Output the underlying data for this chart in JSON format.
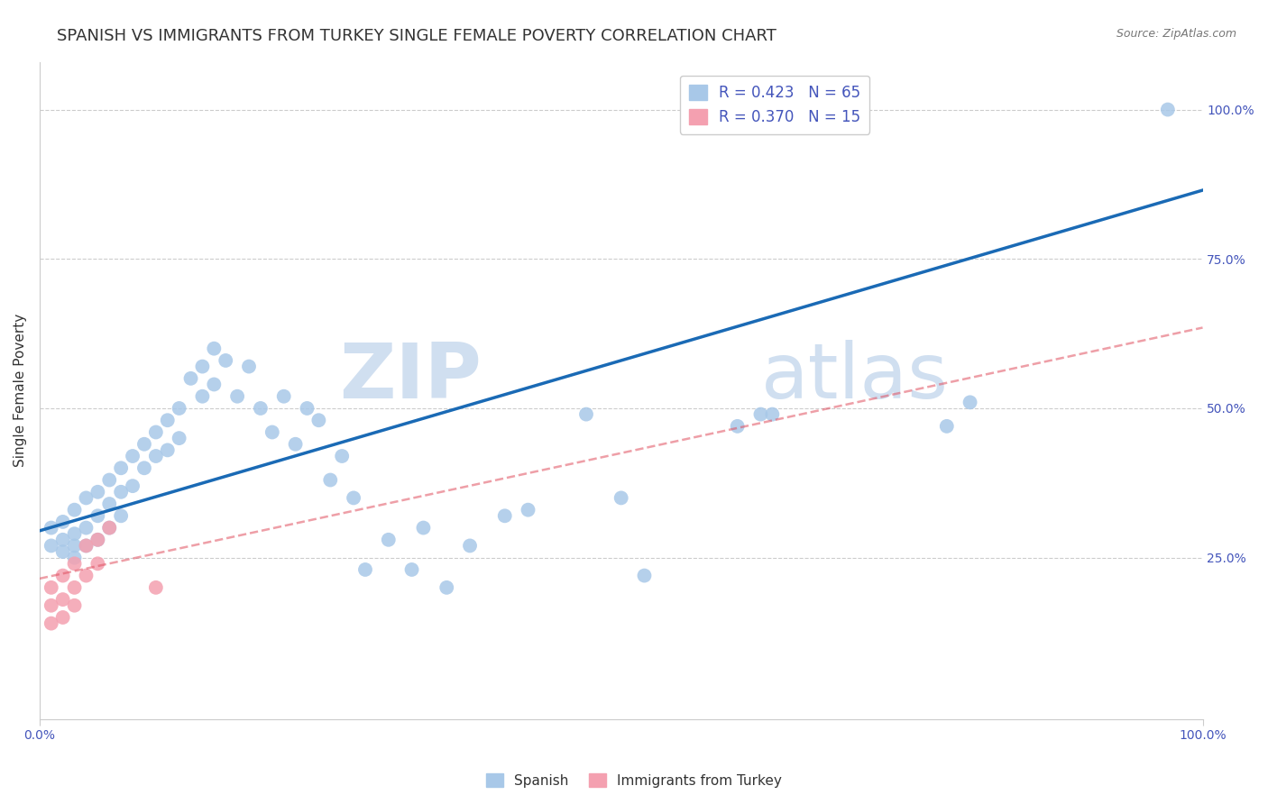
{
  "title": "SPANISH VS IMMIGRANTS FROM TURKEY SINGLE FEMALE POVERTY CORRELATION CHART",
  "source_text": "Source: ZipAtlas.com",
  "ylabel": "Single Female Poverty",
  "xlim": [
    0,
    1
  ],
  "ylim": [
    -0.02,
    1.08
  ],
  "xtick_labels": [
    "0.0%",
    "100.0%"
  ],
  "ytick_labels": [
    "25.0%",
    "50.0%",
    "75.0%",
    "100.0%"
  ],
  "ytick_positions": [
    0.25,
    0.5,
    0.75,
    1.0
  ],
  "xtick_positions": [
    0.0,
    1.0
  ],
  "legend_r_blue": "R = 0.423",
  "legend_n_blue": "N = 65",
  "legend_r_pink": "R = 0.370",
  "legend_n_pink": "N = 15",
  "label_blue": "Spanish",
  "label_pink": "Immigrants from Turkey",
  "color_blue": "#a8c8e8",
  "color_pink": "#f4a0b0",
  "line_color_blue": "#1a6ab5",
  "line_color_pink": "#e05060",
  "watermark_line1": "ZIP",
  "watermark_line2": "atlas",
  "watermark_color": "#d0dff0",
  "background_color": "#ffffff",
  "title_fontsize": 13,
  "axis_label_fontsize": 11,
  "tick_fontsize": 10,
  "legend_fontsize": 12,
  "blue_points_x": [
    0.01,
    0.01,
    0.02,
    0.02,
    0.02,
    0.03,
    0.03,
    0.03,
    0.03,
    0.04,
    0.04,
    0.04,
    0.05,
    0.05,
    0.05,
    0.06,
    0.06,
    0.06,
    0.07,
    0.07,
    0.07,
    0.08,
    0.08,
    0.09,
    0.09,
    0.1,
    0.1,
    0.11,
    0.11,
    0.12,
    0.12,
    0.13,
    0.14,
    0.14,
    0.15,
    0.15,
    0.16,
    0.17,
    0.18,
    0.19,
    0.2,
    0.21,
    0.22,
    0.23,
    0.24,
    0.25,
    0.26,
    0.27,
    0.28,
    0.3,
    0.32,
    0.33,
    0.35,
    0.37,
    0.4,
    0.42,
    0.47,
    0.5,
    0.52,
    0.6,
    0.62,
    0.63,
    0.78,
    0.8,
    0.97
  ],
  "blue_points_y": [
    0.3,
    0.27,
    0.31,
    0.28,
    0.26,
    0.33,
    0.29,
    0.27,
    0.25,
    0.35,
    0.3,
    0.27,
    0.36,
    0.32,
    0.28,
    0.38,
    0.34,
    0.3,
    0.4,
    0.36,
    0.32,
    0.42,
    0.37,
    0.44,
    0.4,
    0.46,
    0.42,
    0.48,
    0.43,
    0.5,
    0.45,
    0.55,
    0.57,
    0.52,
    0.6,
    0.54,
    0.58,
    0.52,
    0.57,
    0.5,
    0.46,
    0.52,
    0.44,
    0.5,
    0.48,
    0.38,
    0.42,
    0.35,
    0.23,
    0.28,
    0.23,
    0.3,
    0.2,
    0.27,
    0.32,
    0.33,
    0.49,
    0.35,
    0.22,
    0.47,
    0.49,
    0.49,
    0.47,
    0.51,
    1.0
  ],
  "pink_points_x": [
    0.01,
    0.01,
    0.01,
    0.02,
    0.02,
    0.02,
    0.03,
    0.03,
    0.03,
    0.04,
    0.04,
    0.05,
    0.05,
    0.06,
    0.1
  ],
  "pink_points_y": [
    0.14,
    0.17,
    0.2,
    0.22,
    0.18,
    0.15,
    0.24,
    0.2,
    0.17,
    0.27,
    0.22,
    0.28,
    0.24,
    0.3,
    0.2
  ],
  "blue_trend_x": [
    0.0,
    1.0
  ],
  "blue_trend_y": [
    0.295,
    0.865
  ],
  "pink_trend_x": [
    0.0,
    1.0
  ],
  "pink_trend_y": [
    0.215,
    0.635
  ]
}
